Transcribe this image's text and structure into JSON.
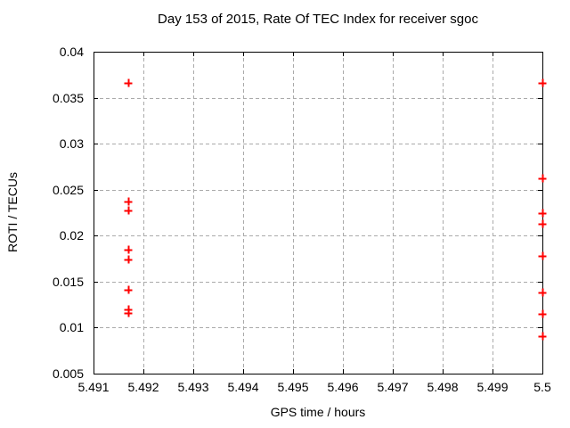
{
  "chart_data": {
    "type": "scatter",
    "title": "Day 153 of 2015, Rate Of TEC Index for receiver sgoc",
    "xlabel": "GPS time / hours",
    "ylabel": "ROTI / TECUs",
    "xlim": [
      5.491,
      5.5
    ],
    "ylim": [
      0.005,
      0.04
    ],
    "x_ticks": [
      {
        "value": 5.491,
        "label": "5.491"
      },
      {
        "value": 5.492,
        "label": "5.492"
      },
      {
        "value": 5.493,
        "label": "5.493"
      },
      {
        "value": 5.494,
        "label": "5.494"
      },
      {
        "value": 5.495,
        "label": "5.495"
      },
      {
        "value": 5.496,
        "label": "5.496"
      },
      {
        "value": 5.497,
        "label": "5.497"
      },
      {
        "value": 5.498,
        "label": "5.498"
      },
      {
        "value": 5.499,
        "label": "5.499"
      },
      {
        "value": 5.5,
        "label": "5.5"
      }
    ],
    "y_ticks": [
      {
        "value": 0.005,
        "label": "0.005"
      },
      {
        "value": 0.01,
        "label": "0.01"
      },
      {
        "value": 0.015,
        "label": "0.015"
      },
      {
        "value": 0.02,
        "label": "0.02"
      },
      {
        "value": 0.025,
        "label": "0.025"
      },
      {
        "value": 0.03,
        "label": "0.03"
      },
      {
        "value": 0.035,
        "label": "0.035"
      },
      {
        "value": 0.04,
        "label": "0.04"
      }
    ],
    "grid": true,
    "legend_position": "none",
    "marker_style": "plus",
    "colors": {
      "marker": "#ff0000",
      "grid": "#aaaaaa",
      "axis": "#000000",
      "text": "#000000",
      "background": "#ffffff"
    },
    "series": [
      {
        "name": "ROTI",
        "points": [
          {
            "x": 5.4917,
            "y": 0.0366
          },
          {
            "x": 5.4917,
            "y": 0.0237
          },
          {
            "x": 5.4917,
            "y": 0.0227
          },
          {
            "x": 5.4917,
            "y": 0.0185
          },
          {
            "x": 5.4917,
            "y": 0.0174
          },
          {
            "x": 5.4917,
            "y": 0.0141
          },
          {
            "x": 5.4917,
            "y": 0.012
          },
          {
            "x": 5.4917,
            "y": 0.0116
          },
          {
            "x": 5.5,
            "y": 0.0366
          },
          {
            "x": 5.5,
            "y": 0.0262
          },
          {
            "x": 5.5,
            "y": 0.0225
          },
          {
            "x": 5.5,
            "y": 0.0213
          },
          {
            "x": 5.5,
            "y": 0.0178
          },
          {
            "x": 5.5,
            "y": 0.0138
          },
          {
            "x": 5.5,
            "y": 0.0115
          },
          {
            "x": 5.5,
            "y": 0.0091
          }
        ]
      }
    ]
  }
}
